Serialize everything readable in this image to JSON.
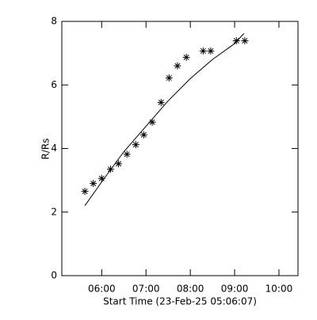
{
  "chart_data": {
    "type": "scatter",
    "x_label": "Start Time (23-Feb-25 05:06:07)",
    "y_label": "R/Rs",
    "xlim": [
      5.1,
      10.43
    ],
    "ylim": [
      0,
      8
    ],
    "xticks": [
      {
        "value": 6,
        "label": "06:00"
      },
      {
        "value": 7,
        "label": "07:00"
      },
      {
        "value": 8,
        "label": "08:00"
      },
      {
        "value": 9,
        "label": "09:00"
      },
      {
        "value": 10,
        "label": "10:00"
      }
    ],
    "yticks": [
      0,
      2,
      4,
      6,
      8
    ],
    "color": "#000000",
    "series": [
      {
        "marker": "asterisk",
        "x": [
          5.62,
          5.81,
          6.0,
          6.2,
          6.38,
          6.57,
          6.77,
          6.95,
          7.14,
          7.34,
          7.52,
          7.71,
          7.91,
          8.29,
          8.46,
          9.04,
          9.23
        ],
        "values": [
          2.65,
          2.9,
          3.06,
          3.35,
          3.52,
          3.82,
          4.12,
          4.43,
          4.83,
          5.45,
          6.22,
          6.6,
          6.87,
          7.07,
          7.07,
          7.39,
          7.39
        ]
      },
      {
        "marker": "line",
        "x": [
          5.62,
          6.0,
          6.5,
          7.0,
          7.5,
          8.0,
          8.5,
          9.0,
          9.21
        ],
        "values": [
          2.2,
          2.95,
          3.9,
          4.7,
          5.5,
          6.2,
          6.8,
          7.3,
          7.62
        ]
      }
    ]
  }
}
